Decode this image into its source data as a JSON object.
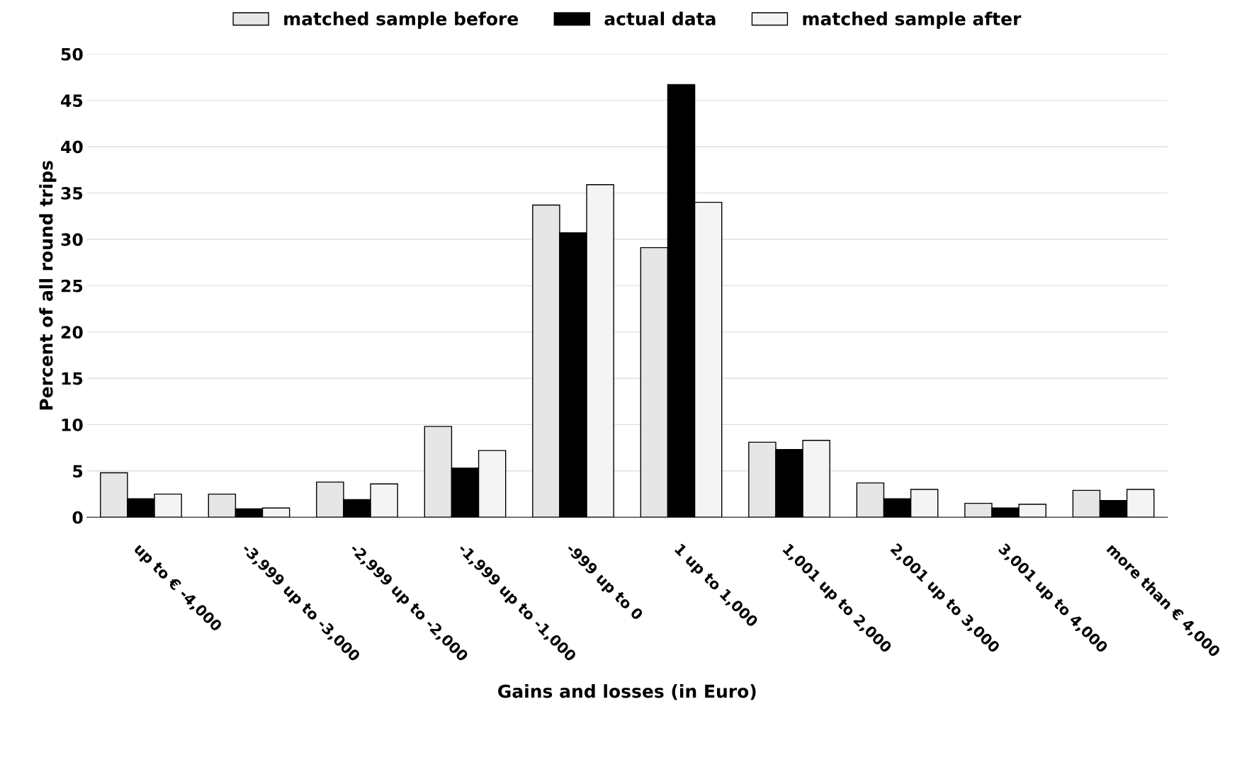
{
  "chart_data": {
    "type": "bar",
    "xlabel": "Gains and losses (in Euro)",
    "ylabel": "Percent of all round trips",
    "categories": [
      "up to € -4,000",
      "-3,999 up to -3,000",
      "-2,999 up to -2,000",
      "-1,999 up to -1,000",
      "-999 up to 0",
      "1 up to 1,000",
      "1,001 up to 2,000",
      "2,001 up to 3,000",
      "3,001 up to 4,000",
      "more than € 4,000"
    ],
    "series": [
      {
        "name": "matched sample before",
        "color": "#e6e6e6",
        "values": [
          4.8,
          2.5,
          3.8,
          9.8,
          33.7,
          29.1,
          8.1,
          3.7,
          1.5,
          2.9
        ]
      },
      {
        "name": "actual data",
        "color": "#000000",
        "values": [
          2.0,
          0.9,
          1.9,
          5.3,
          30.7,
          46.7,
          7.3,
          2.0,
          1.0,
          1.8
        ]
      },
      {
        "name": "matched sample after",
        "color": "#f4f4f4",
        "values": [
          2.5,
          1.0,
          3.6,
          7.2,
          35.9,
          34.0,
          8.3,
          3.0,
          1.4,
          3.0
        ]
      }
    ],
    "ylim": [
      0,
      50
    ],
    "yticks": [
      0,
      5,
      10,
      15,
      20,
      25,
      30,
      35,
      40,
      45,
      50
    ],
    "grid": "y",
    "legend": "top"
  }
}
